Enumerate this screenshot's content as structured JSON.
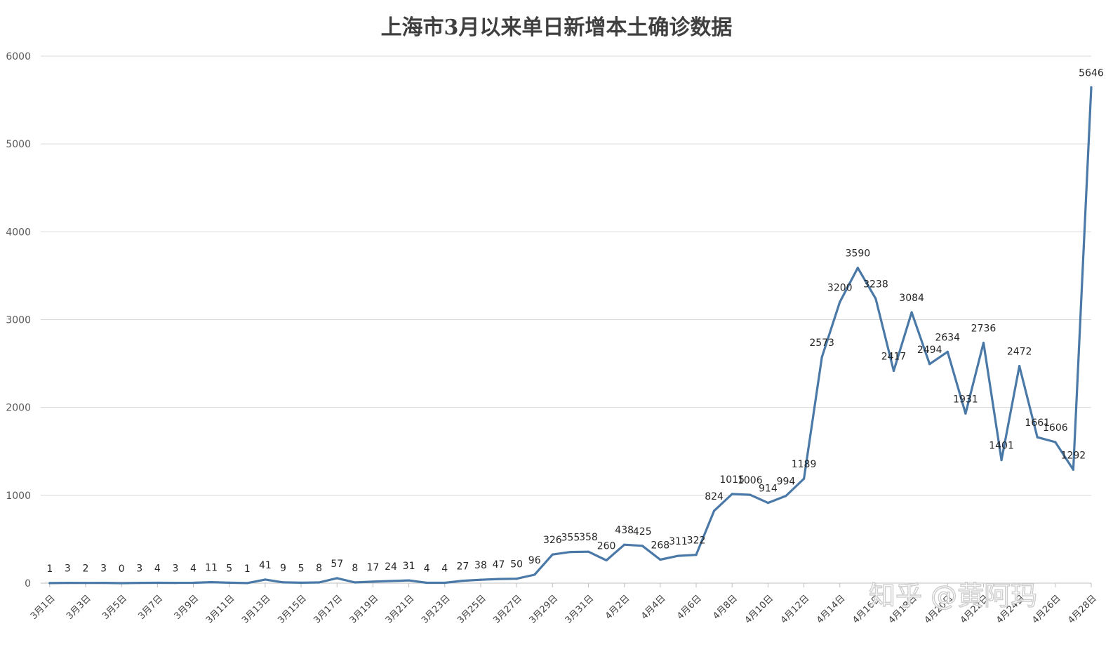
{
  "chart_data": {
    "type": "line",
    "title": "上海市3月以来单日新增本土确诊数据",
    "xlabel": "",
    "ylabel": "",
    "ylim": [
      0,
      6000
    ],
    "yticks": [
      0,
      1000,
      2000,
      3000,
      4000,
      5000,
      6000
    ],
    "grid": true,
    "legend": "none",
    "x": [
      "3月1日",
      "3月2日",
      "3月3日",
      "3月4日",
      "3月5日",
      "3月6日",
      "3月7日",
      "3月8日",
      "3月9日",
      "3月10日",
      "3月11日",
      "3月12日",
      "3月13日",
      "3月14日",
      "3月15日",
      "3月16日",
      "3月17日",
      "3月18日",
      "3月19日",
      "3月20日",
      "3月21日",
      "3月22日",
      "3月23日",
      "3月24日",
      "3月25日",
      "3月26日",
      "3月27日",
      "3月28日",
      "3月29日",
      "3月30日",
      "3月31日",
      "4月1日",
      "4月2日",
      "4月3日",
      "4月4日",
      "4月5日",
      "4月6日",
      "4月7日",
      "4月8日",
      "4月9日",
      "4月10日",
      "4月11日",
      "4月12日",
      "4月13日",
      "4月14日",
      "4月15日",
      "4月16日",
      "4月17日",
      "4月18日",
      "4月19日",
      "4月20日",
      "4月21日",
      "4月22日",
      "4月23日",
      "4月24日",
      "4月25日",
      "4月26日",
      "4月27日",
      "4月28日"
    ],
    "x_tick_labels": [
      "3月1日",
      "3月3日",
      "3月5日",
      "3月7日",
      "3月9日",
      "3月11日",
      "3月13日",
      "3月15日",
      "3月17日",
      "3月19日",
      "3月21日",
      "3月23日",
      "3月25日",
      "3月27日",
      "3月29日",
      "3月31日",
      "4月2日",
      "4月4日",
      "4月6日",
      "4月8日",
      "4月10日",
      "4月12日",
      "4月14日",
      "4月16日",
      "4月18日",
      "4月20日",
      "4月22日",
      "4月24日",
      "4月26日",
      "4月28日"
    ],
    "series": [
      {
        "color": "#4a79a8",
        "values": [
          1,
          3,
          2,
          3,
          0,
          3,
          4,
          3,
          4,
          11,
          5,
          1,
          41,
          9,
          5,
          8,
          57,
          8,
          17,
          24,
          31,
          4,
          4,
          27,
          38,
          47,
          50,
          96,
          326,
          355,
          358,
          260,
          438,
          425,
          268,
          311,
          322,
          824,
          1015,
          1006,
          914,
          994,
          1189,
          2573,
          3200,
          3590,
          3238,
          2417,
          3084,
          2494,
          2634,
          1931,
          2736,
          1401,
          2472,
          1661,
          1606,
          1292,
          5646
        ]
      }
    ]
  },
  "watermark": "知乎 @黄阿玛"
}
